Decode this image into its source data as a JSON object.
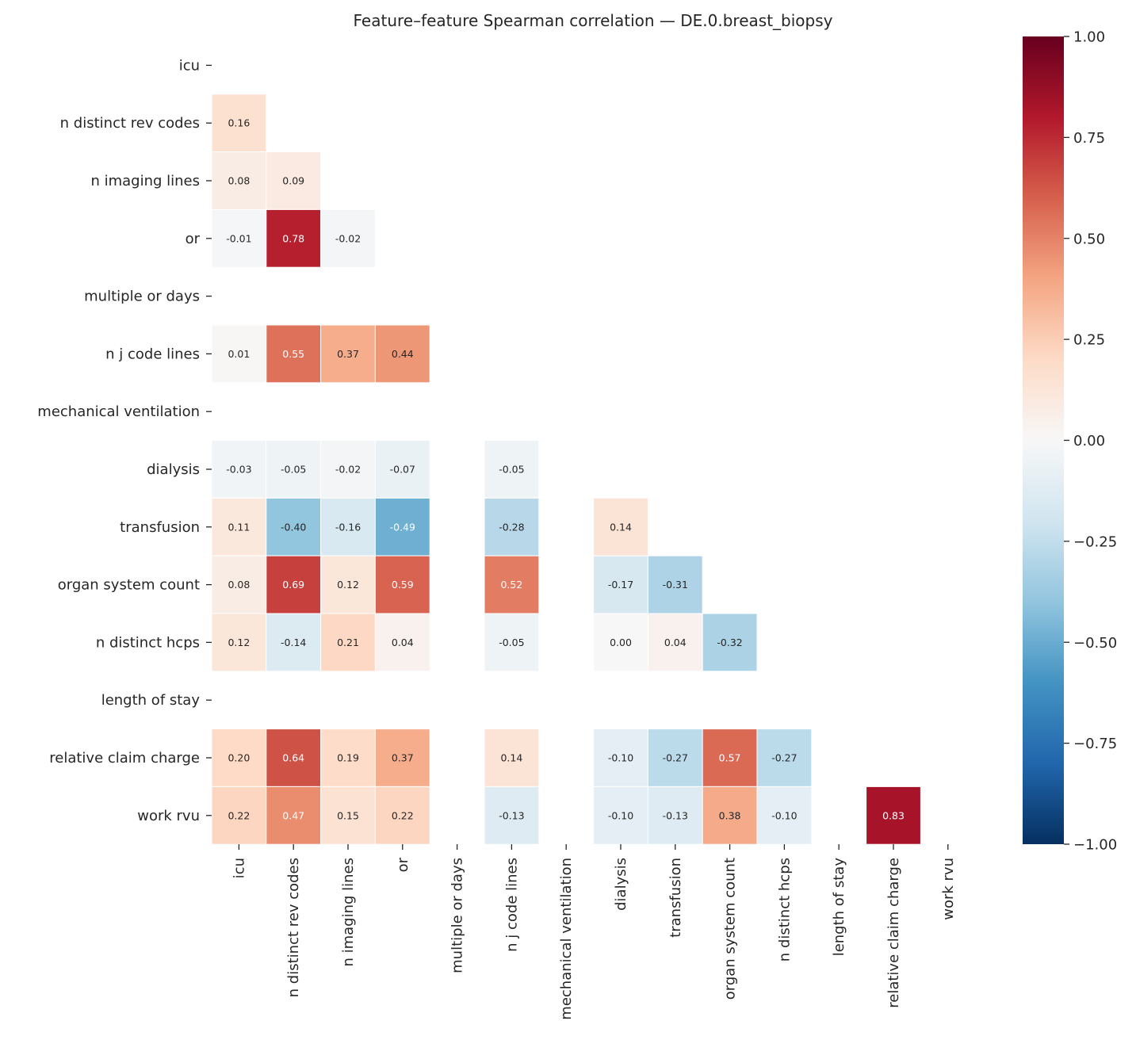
{
  "chart_data": {
    "type": "heatmap",
    "title": "Feature–feature Spearman correlation — DE.0.breast_biopsy",
    "colormap": "RdBu_r",
    "colormap_stops": [
      "#053061",
      "#2166ac",
      "#4393c3",
      "#92c5de",
      "#d1e5f0",
      "#f7f7f7",
      "#fddbc7",
      "#f4a582",
      "#d6604d",
      "#b2182b",
      "#67001f"
    ],
    "vmin": -1.0,
    "vmax": 1.0,
    "mask": "upper triangle incl. diagonal",
    "labels": [
      "icu",
      "n distinct rev codes",
      "n imaging lines",
      "or",
      "multiple or days",
      "n j code lines",
      "mechanical ventilation",
      "dialysis",
      "transfusion",
      "organ system count",
      "n distinct hcps",
      "length of stay",
      "relative claim charge",
      "work rvu"
    ],
    "rows": [
      [],
      [
        0.16
      ],
      [
        0.08,
        0.09
      ],
      [
        -0.01,
        0.78,
        -0.02
      ],
      [
        null,
        null,
        null,
        null
      ],
      [
        0.01,
        0.55,
        0.37,
        0.44,
        null
      ],
      [
        null,
        null,
        null,
        null,
        null,
        null
      ],
      [
        -0.03,
        -0.05,
        -0.02,
        -0.07,
        null,
        -0.05,
        null
      ],
      [
        0.11,
        -0.4,
        -0.16,
        -0.49,
        null,
        -0.28,
        null,
        0.14
      ],
      [
        0.08,
        0.69,
        0.12,
        0.59,
        null,
        0.52,
        null,
        -0.17,
        -0.31
      ],
      [
        0.12,
        -0.14,
        0.21,
        0.04,
        null,
        -0.05,
        null,
        0.0,
        0.04,
        -0.32
      ],
      [
        null,
        null,
        null,
        null,
        null,
        null,
        null,
        null,
        null,
        null,
        null
      ],
      [
        0.2,
        0.64,
        0.19,
        0.37,
        null,
        0.14,
        null,
        -0.1,
        -0.27,
        0.57,
        -0.27,
        null
      ],
      [
        0.22,
        0.47,
        0.15,
        0.22,
        null,
        -0.13,
        null,
        -0.1,
        -0.13,
        0.38,
        -0.1,
        null,
        0.83
      ]
    ],
    "colorbar_ticks": [
      "1.00",
      "0.75",
      "0.50",
      "0.25",
      "0.00",
      "−0.25",
      "−0.50",
      "−0.75",
      "−1.00"
    ]
  }
}
